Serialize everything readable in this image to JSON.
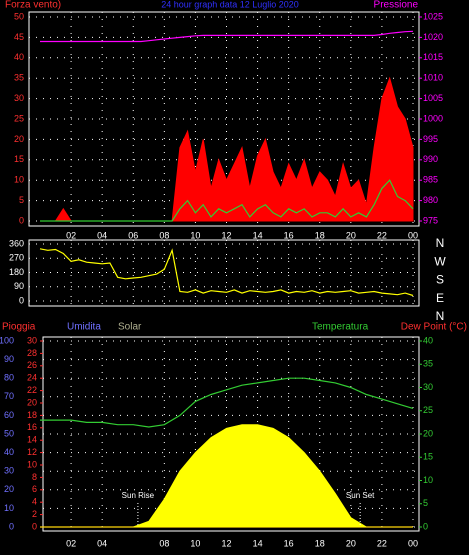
{
  "chart_data": [
    {
      "type": "line",
      "title": "24 hour graph data  12 Luglio 2020",
      "ylabel": "Forza vento)",
      "y2label": "Pressione",
      "x": [
        0,
        0.5,
        1,
        1.5,
        2,
        2.5,
        3,
        3.5,
        4,
        4.5,
        5,
        5.5,
        6,
        6.5,
        7,
        7.5,
        8,
        8.5,
        9,
        9.5,
        10,
        10.5,
        11,
        11.5,
        12,
        12.5,
        13,
        13.5,
        14,
        14.5,
        15,
        15.5,
        16,
        16.5,
        17,
        17.5,
        18,
        18.5,
        19,
        19.5,
        20,
        20.5,
        21,
        21.5,
        22,
        22.5,
        23,
        23.5,
        24
      ],
      "xlim": [
        0,
        24
      ],
      "xticks": [
        {
          "value": 2,
          "label": "02"
        },
        {
          "value": 4,
          "label": "04"
        },
        {
          "value": 6,
          "label": "06"
        },
        {
          "value": 8,
          "label": "08"
        },
        10,
        12,
        14,
        16,
        18,
        20,
        22,
        {
          "value": 24,
          "label": "00"
        }
      ],
      "ylim": [
        0,
        50
      ],
      "yticks": [
        0,
        5,
        10,
        15,
        20,
        25,
        30,
        35,
        40,
        45,
        50
      ],
      "y2lim": [
        975,
        1025
      ],
      "y2ticks": [
        975,
        980,
        985,
        990,
        995,
        1000,
        1005,
        1010,
        1015,
        1020,
        1025
      ],
      "grid": true,
      "series": [
        {
          "color": "#ff0000",
          "area": true,
          "values": [
            0,
            0,
            0,
            3,
            0,
            0,
            0,
            0,
            0,
            0,
            0,
            0,
            0,
            0,
            0,
            0,
            0,
            0,
            18,
            22,
            12,
            20,
            8,
            15,
            10,
            14,
            18,
            8,
            16,
            20,
            12,
            8,
            14,
            10,
            15,
            8,
            12,
            10,
            6,
            14,
            8,
            10,
            4,
            18,
            30,
            35,
            28,
            25,
            18
          ]
        },
        {
          "color": "#33cc33",
          "values": [
            0,
            0,
            0,
            0,
            0,
            0,
            0,
            0,
            0,
            0,
            0,
            0,
            0,
            0,
            0,
            0,
            0,
            0,
            3,
            5,
            2,
            4,
            1,
            3,
            2,
            3,
            4,
            1,
            3,
            4,
            2,
            1,
            3,
            2,
            3,
            1,
            2,
            2,
            1,
            3,
            1,
            2,
            1,
            4,
            8,
            10,
            6,
            5,
            3
          ]
        },
        {
          "color": "#ff00ff",
          "axis": "y2",
          "values": [
            1019,
            1019,
            1019,
            1019,
            1019,
            1019,
            1019,
            1019,
            1019,
            1019,
            1019,
            1019,
            1019,
            1019,
            1019.2,
            1019.4,
            1019.6,
            1019.8,
            1020,
            1020.2,
            1020.4,
            1020.5,
            1020.5,
            1020.5,
            1020.5,
            1020.5,
            1020.5,
            1020.5,
            1020.5,
            1020.5,
            1020.5,
            1020.5,
            1020.5,
            1020.5,
            1020.5,
            1020.5,
            1020.5,
            1020.5,
            1020.5,
            1020.5,
            1020.5,
            1020.5,
            1020.5,
            1020.5,
            1020.7,
            1021,
            1021.2,
            1021.4,
            1021.5
          ]
        }
      ]
    },
    {
      "type": "line",
      "x": [
        0,
        0.5,
        1,
        1.5,
        2,
        2.5,
        3,
        3.5,
        4,
        4.5,
        5,
        5.5,
        6,
        6.5,
        7,
        7.5,
        8,
        8.5,
        9,
        9.5,
        10,
        10.5,
        11,
        11.5,
        12,
        12.5,
        13,
        13.5,
        14,
        14.5,
        15,
        15.5,
        16,
        16.5,
        17,
        17.5,
        18,
        18.5,
        19,
        19.5,
        20,
        20.5,
        21,
        21.5,
        22,
        22.5,
        23,
        23.5,
        24
      ],
      "xlim": [
        0,
        24
      ],
      "ylim": [
        0,
        360
      ],
      "yticks": [
        0,
        90,
        180,
        270,
        360
      ],
      "compass": [
        "N",
        "W",
        "S",
        "E",
        "N"
      ],
      "grid": true,
      "series": [
        {
          "color": "#ffff00",
          "values": [
            330,
            320,
            325,
            300,
            250,
            260,
            245,
            240,
            235,
            240,
            150,
            140,
            145,
            150,
            160,
            170,
            200,
            320,
            60,
            55,
            70,
            50,
            65,
            60,
            55,
            70,
            50,
            65,
            60,
            55,
            60,
            70,
            50,
            60,
            55,
            65,
            50,
            60,
            55,
            60,
            65,
            50,
            55,
            60,
            50,
            45,
            40,
            50,
            35
          ]
        }
      ]
    },
    {
      "type": "line",
      "ylabel": "Umidita",
      "y2label": "Dew Point (°C)",
      "x": [
        0,
        1,
        2,
        3,
        4,
        5,
        6,
        7,
        8,
        9,
        10,
        11,
        12,
        13,
        14,
        15,
        16,
        17,
        18,
        19,
        20,
        21,
        22,
        23,
        24
      ],
      "xlim": [
        0,
        24
      ],
      "xticks": [
        {
          "value": 2,
          "label": "02"
        },
        {
          "value": 4,
          "label": "04"
        },
        {
          "value": 8,
          "label": "08"
        },
        10,
        12,
        14,
        16,
        18,
        20,
        22,
        {
          "value": 24,
          "label": "00"
        }
      ],
      "ylim": [
        0,
        100
      ],
      "yticks": [
        0,
        10,
        20,
        30,
        40,
        50,
        60,
        70,
        80,
        90,
        100
      ],
      "y3lim": [
        0,
        30
      ],
      "y3ticks": [
        0,
        2,
        4,
        6,
        8,
        10,
        12,
        14,
        16,
        18,
        20,
        22,
        24,
        26,
        28,
        30
      ],
      "y2lim": [
        0,
        40
      ],
      "y2ticks": [
        0,
        5,
        10,
        15,
        20,
        25,
        30,
        35,
        40
      ],
      "grid": true,
      "annotations": [
        {
          "text": "Sun Rise",
          "x": 6.3
        },
        {
          "text": "Sun Set",
          "x": 20.6
        }
      ],
      "series": [
        {
          "name": "Pioggia",
          "color": "#ff3030",
          "axis": "y3",
          "values": [
            0,
            0,
            0,
            0,
            0,
            0,
            0,
            0,
            0,
            0,
            0,
            0,
            0,
            0,
            0,
            0,
            0,
            0,
            0,
            0,
            0,
            0,
            0,
            0,
            0
          ]
        },
        {
          "name": "Solar",
          "color": "#ffff00",
          "area": true,
          "values": [
            0,
            0,
            0,
            0,
            0,
            0,
            0,
            3,
            15,
            30,
            40,
            48,
            53,
            55,
            55,
            53,
            48,
            40,
            30,
            18,
            5,
            0,
            0,
            0,
            0
          ]
        },
        {
          "name": "Temperatura",
          "color": "#33cc33",
          "axis": "y2",
          "values": [
            23,
            23,
            23,
            22.5,
            22.5,
            22,
            22,
            21.5,
            22,
            24,
            27,
            28.5,
            29.5,
            30.5,
            31,
            31.5,
            32,
            32,
            31.5,
            31,
            30,
            28.5,
            27.5,
            26.5,
            25.5
          ]
        }
      ]
    }
  ]
}
